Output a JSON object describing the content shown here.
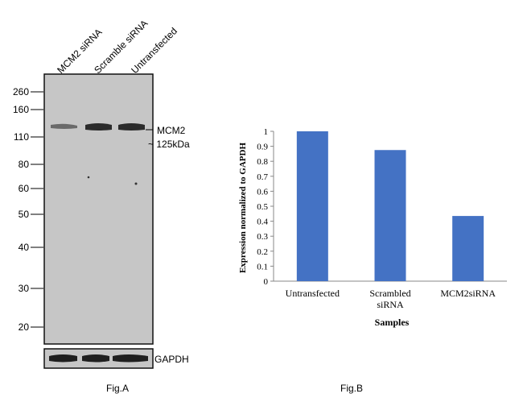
{
  "figure_a": {
    "lane_labels": [
      "MCM2 siRNA",
      "Scramble siRNA",
      "Untransfected"
    ],
    "markers": [
      "260",
      "160",
      "110",
      "80",
      "60",
      "50",
      "40",
      "30",
      "20"
    ],
    "band_label": "MCM2",
    "band_size": "~ 125kDa",
    "loading_control": "GAPDH",
    "caption": "Fig.A",
    "colors": {
      "blot_background": "#c6c6c6",
      "band": "#2b2b2b"
    }
  },
  "figure_b": {
    "caption": "Fig.B"
  },
  "chart_data": {
    "type": "bar",
    "categories": [
      "Untransfected",
      "Scrambled siRNA",
      "MCM2siRNA"
    ],
    "series": [
      {
        "values": [
          1.0,
          0.875,
          0.435
        ],
        "color": "#4472c4"
      }
    ],
    "xlabel": "Samples",
    "ylabel": "Expression normalized to GAPDH",
    "ylim": [
      0,
      1
    ],
    "yticks": [
      "0",
      "0.1",
      "0.2",
      "0.3",
      "0.4",
      "0.5",
      "0.6",
      "0.7",
      "0.8",
      "0.9",
      "1"
    ],
    "grid": false,
    "legend": "none"
  }
}
